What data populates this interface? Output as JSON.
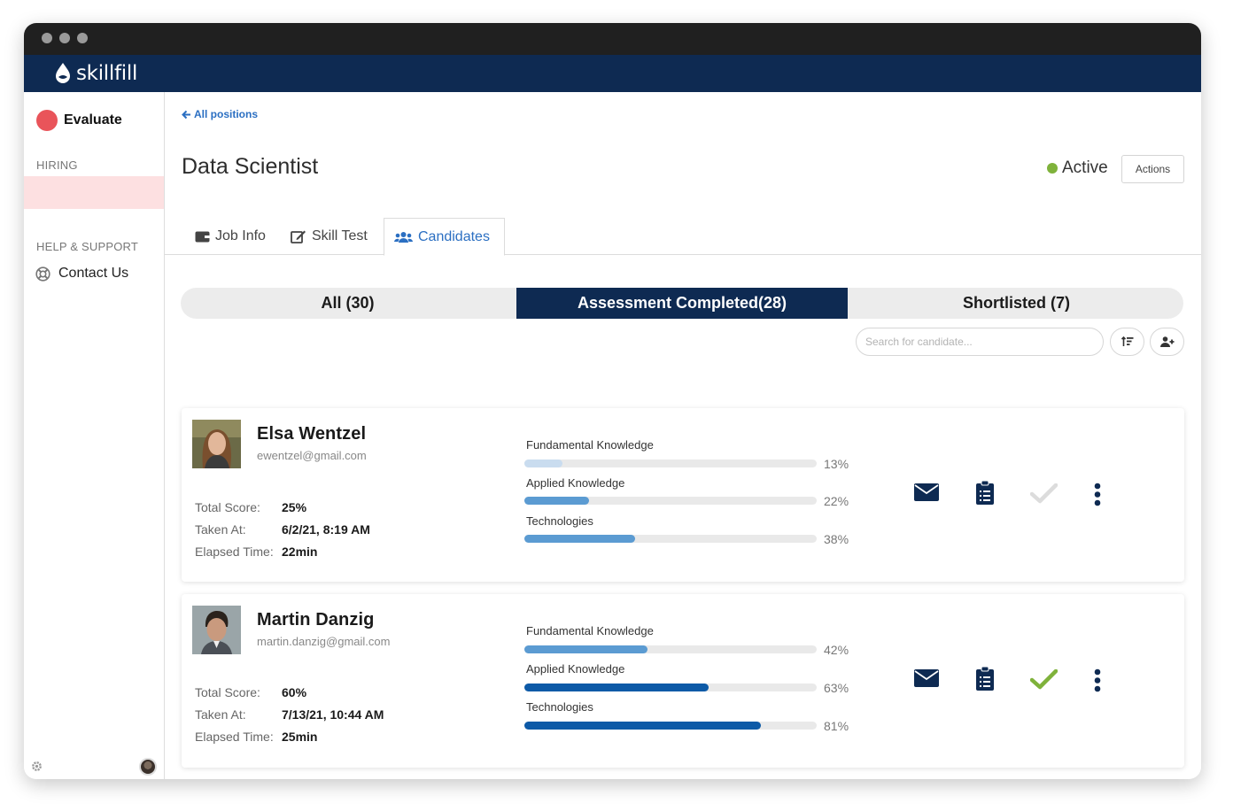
{
  "app": {
    "brand": "skillfill"
  },
  "sidebar": {
    "evaluate_label": "Evaluate",
    "hiring_label": "HIRING",
    "help_label": "HELP & SUPPORT",
    "contact_label": "Contact Us"
  },
  "header": {
    "back_label": "All positions",
    "title": "Data Scientist",
    "status": "Active",
    "actions_label": "Actions"
  },
  "tabs": [
    {
      "label": "Job Info",
      "icon": "wallet-icon"
    },
    {
      "label": "Skill Test",
      "icon": "edit-icon"
    },
    {
      "label": "Candidates",
      "icon": "users-icon",
      "active": true
    }
  ],
  "filters": [
    {
      "label": "All (30)"
    },
    {
      "label": "Assessment Completed(28)",
      "active": true
    },
    {
      "label": "Shortlisted (7)"
    }
  ],
  "search": {
    "placeholder": "Search for candidate..."
  },
  "colors": {
    "navy": "#0e2a52",
    "accent_blue": "#2b6fc2",
    "active_green": "#7fb23b",
    "evaluate_red": "#e9545a"
  },
  "stat_labels": {
    "total": "Total Score:",
    "taken": "Taken At:",
    "elapsed": "Elapsed Time:"
  },
  "candidates": [
    {
      "name": "Elsa Wentzel",
      "email": "ewentzel@gmail.com",
      "total_score": "25%",
      "taken_at": "6/2/21, 8:19 AM",
      "elapsed": "22min",
      "shortlisted": false,
      "skills": [
        {
          "label": "Fundamental Knowledge",
          "pct": "13%",
          "value": 0.13,
          "color": "#c9dcef"
        },
        {
          "label": "Applied Knowledge",
          "pct": "22%",
          "value": 0.22,
          "color": "#5b9bd2"
        },
        {
          "label": "Technologies",
          "pct": "38%",
          "value": 0.38,
          "color": "#5b9bd2"
        }
      ]
    },
    {
      "name": "Martin Danzig",
      "email": "martin.danzig@gmail.com",
      "total_score": "60%",
      "taken_at": "7/13/21, 10:44 AM",
      "elapsed": "25min",
      "shortlisted": true,
      "skills": [
        {
          "label": "Fundamental Knowledge",
          "pct": "42%",
          "value": 0.42,
          "color": "#5b9bd2"
        },
        {
          "label": "Applied Knowledge",
          "pct": "63%",
          "value": 0.63,
          "color": "#0d5aa7"
        },
        {
          "label": "Technologies",
          "pct": "81%",
          "value": 0.81,
          "color": "#0d5aa7"
        }
      ]
    }
  ]
}
